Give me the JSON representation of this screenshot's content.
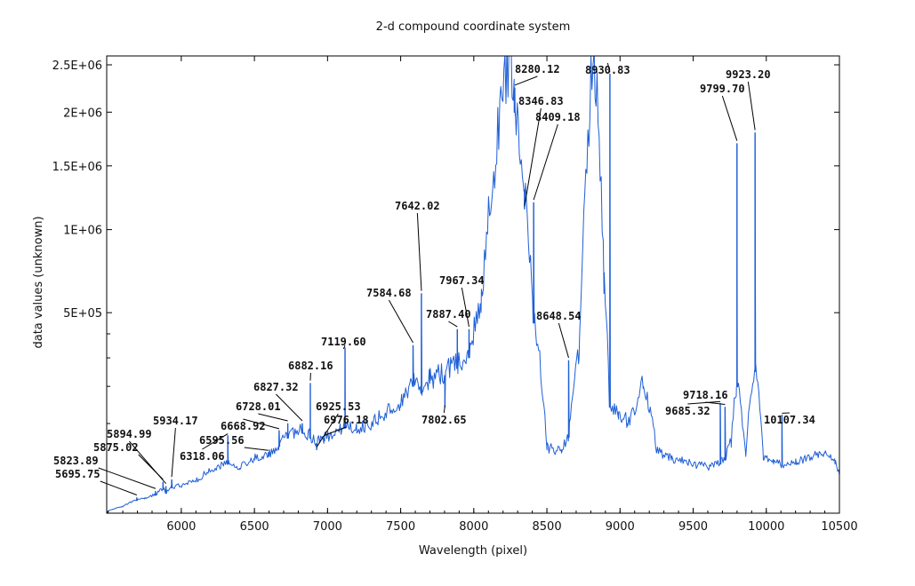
{
  "chart_data": {
    "type": "line",
    "title": "2-d compound coordinate system",
    "xlabel": "Wavelength (pixel)",
    "ylabel": "data values (unknown)",
    "xlim": [
      5490,
      10500
    ],
    "ylim": [
      0,
      2600000
    ],
    "y_scale": "sqrt",
    "grid": false,
    "x_ticks": [
      6000,
      6500,
      7000,
      7500,
      8000,
      8500,
      9000,
      9500,
      10000,
      10500
    ],
    "x_tick_labels": [
      "6000",
      "6500",
      "7000",
      "7500",
      "8000",
      "8500",
      "9000",
      "9500",
      "10000",
      "10500"
    ],
    "y_ticks": [
      500000,
      1000000,
      1500000,
      2000000,
      2500000
    ],
    "y_tick_labels": [
      "5E+05",
      "1E+06",
      "1.5E+06",
      "2E+06",
      "2.5E+06"
    ],
    "series": [
      {
        "color": "#1f5fd6",
        "x": [
          5490,
          5600,
          5695,
          5750,
          5823,
          5875,
          5895,
          5934,
          6000,
          6100,
          6180,
          6318,
          6400,
          6500,
          6595,
          6668,
          6728,
          6827,
          6882,
          6925,
          6976,
          7050,
          7119,
          7200,
          7300,
          7400,
          7500,
          7584,
          7642,
          7700,
          7802,
          7887,
          7967,
          8050,
          8150,
          8230,
          8280,
          8346,
          8409,
          8500,
          8600,
          8648,
          8720,
          8820,
          8890,
          8930,
          8990,
          9050,
          9100,
          9160,
          9250,
          9350,
          9500,
          9600,
          9685,
          9718,
          9760,
          9799,
          9860,
          9923,
          9980,
          10050,
          10107,
          10200,
          10300,
          10400,
          10470,
          10500
        ],
        "y": [
          0,
          500,
          2000,
          2500,
          4000,
          7000,
          5000,
          8000,
          9000,
          12000,
          20000,
          30000,
          25000,
          35000,
          40000,
          55000,
          70000,
          80000,
          70000,
          60000,
          65000,
          75000,
          90000,
          80000,
          95000,
          120000,
          140000,
          200000,
          180000,
          210000,
          230000,
          260000,
          300000,
          500000,
          1500000,
          2400000,
          2000000,
          1300000,
          450000,
          50000,
          45000,
          70000,
          300000,
          2600000,
          600000,
          140000,
          110000,
          100000,
          120000,
          200000,
          45000,
          35000,
          28000,
          25000,
          30000,
          35000,
          60000,
          200000,
          40000,
          250000,
          35000,
          30000,
          28000,
          30000,
          35000,
          45000,
          30000,
          18000
        ],
        "peaks": [
          {
            "x": 5695.75,
            "y": 3000
          },
          {
            "x": 5823.89,
            "y": 6000
          },
          {
            "x": 5875.02,
            "y": 12000
          },
          {
            "x": 5894.99,
            "y": 9000
          },
          {
            "x": 5934.17,
            "y": 14000
          },
          {
            "x": 6318.06,
            "y": 75000
          },
          {
            "x": 6595.56,
            "y": 45000
          },
          {
            "x": 6668.92,
            "y": 85000
          },
          {
            "x": 6728.01,
            "y": 100000
          },
          {
            "x": 6827.32,
            "y": 100000
          },
          {
            "x": 6882.16,
            "y": 210000
          },
          {
            "x": 6925.53,
            "y": 50000
          },
          {
            "x": 6976.18,
            "y": 70000
          },
          {
            "x": 7119.6,
            "y": 340000
          },
          {
            "x": 7584.68,
            "y": 350000
          },
          {
            "x": 7642.02,
            "y": 600000
          },
          {
            "x": 7802.65,
            "y": 140000
          },
          {
            "x": 7887.4,
            "y": 420000
          },
          {
            "x": 7967.34,
            "y": 420000
          },
          {
            "x": 8280.12,
            "y": 2250000
          },
          {
            "x": 8346.83,
            "y": 1150000
          },
          {
            "x": 8409.18,
            "y": 1200000
          },
          {
            "x": 8648.54,
            "y": 290000
          },
          {
            "x": 8930.83,
            "y": 2400000
          },
          {
            "x": 9685.32,
            "y": 150000
          },
          {
            "x": 9718.16,
            "y": 140000
          },
          {
            "x": 9799.7,
            "y": 1700000
          },
          {
            "x": 9923.2,
            "y": 1800000
          },
          {
            "x": 10107.34,
            "y": 120000
          }
        ]
      }
    ],
    "annotations": [
      {
        "text": "5695.75",
        "x": 5695.75
      },
      {
        "text": "5823.89",
        "x": 5823.89
      },
      {
        "text": "5875.02",
        "x": 5875.02
      },
      {
        "text": "5894.99",
        "x": 5894.99
      },
      {
        "text": "5934.17",
        "x": 5934.17
      },
      {
        "text": "6318.06",
        "x": 6318.06
      },
      {
        "text": "6595.56",
        "x": 6595.56
      },
      {
        "text": "6668.92",
        "x": 6668.92
      },
      {
        "text": "6728.01",
        "x": 6728.01
      },
      {
        "text": "6827.32",
        "x": 6827.32
      },
      {
        "text": "6882.16",
        "x": 6882.16
      },
      {
        "text": "6925.53",
        "x": 6925.53
      },
      {
        "text": "6976.18",
        "x": 6976.18
      },
      {
        "text": "7119.60",
        "x": 7119.6
      },
      {
        "text": "7584.68",
        "x": 7584.68
      },
      {
        "text": "7642.02",
        "x": 7642.02
      },
      {
        "text": "7802.65",
        "x": 7802.65
      },
      {
        "text": "7887.40",
        "x": 7887.4
      },
      {
        "text": "7967.34",
        "x": 7967.34
      },
      {
        "text": "8280.12",
        "x": 8280.12
      },
      {
        "text": "8346.83",
        "x": 8346.83
      },
      {
        "text": "8409.18",
        "x": 8409.18
      },
      {
        "text": "8648.54",
        "x": 8648.54
      },
      {
        "text": "8930.83",
        "x": 8930.83
      },
      {
        "text": "9685.32",
        "x": 9685.32
      },
      {
        "text": "9718.16",
        "x": 9718.16
      },
      {
        "text": "9799.70",
        "x": 9799.7
      },
      {
        "text": "9923.20",
        "x": 9923.2
      },
      {
        "text": "10107.34",
        "x": 10107.34
      }
    ]
  }
}
